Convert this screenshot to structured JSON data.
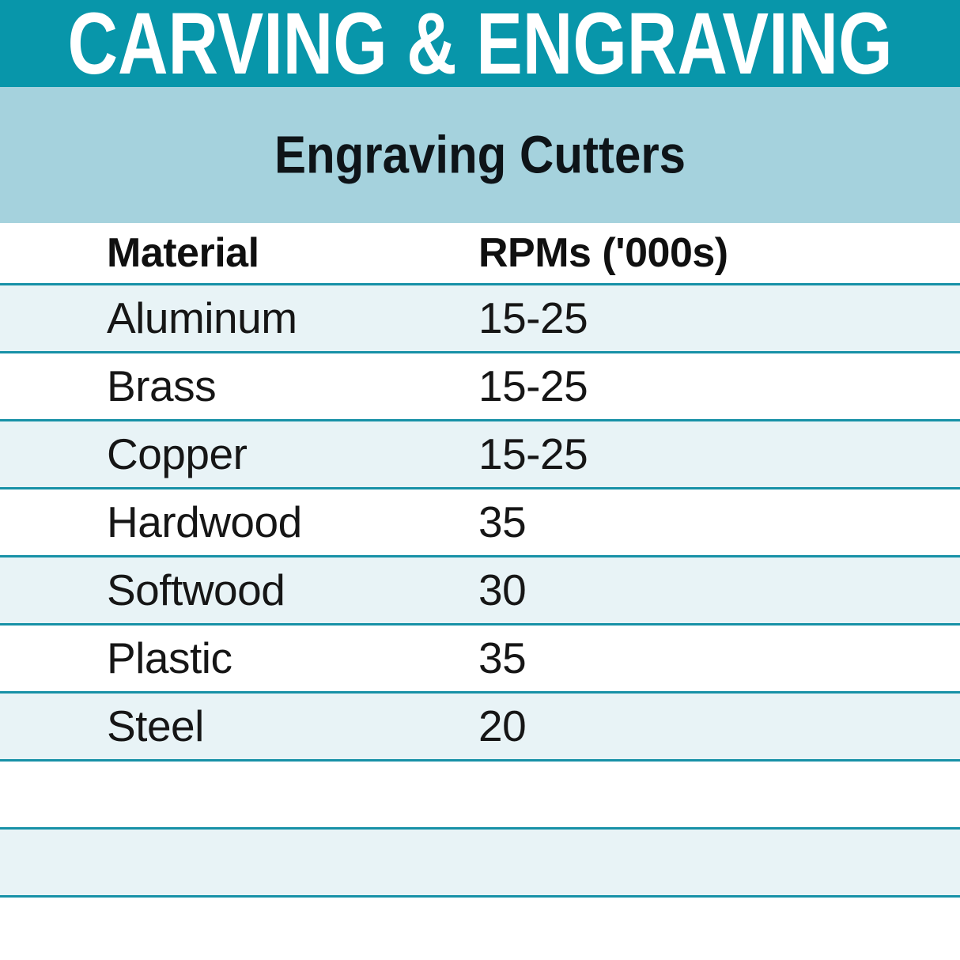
{
  "header": {
    "title": "CARVING & ENGRAVING",
    "subtitle": "Engraving Cutters"
  },
  "table": {
    "columns": [
      "Material",
      "RPMs ('000s)"
    ],
    "rows": [
      {
        "material": "Aluminum",
        "rpms": "15-25"
      },
      {
        "material": "Brass",
        "rpms": "15-25"
      },
      {
        "material": "Copper",
        "rpms": "15-25"
      },
      {
        "material": "Hardwood",
        "rpms": "35"
      },
      {
        "material": "Softwood",
        "rpms": "30"
      },
      {
        "material": "Plastic",
        "rpms": "35"
      },
      {
        "material": "Steel",
        "rpms": "20"
      }
    ],
    "empty_row_count": 3
  },
  "colors": {
    "banner_teal": "#0896aa",
    "subband_light_blue": "#a5d2dd",
    "row_ice_blue": "#e8f3f6",
    "rule_teal": "#1791a7",
    "title_text": "#ffffff",
    "body_text": "#161616"
  },
  "chart_data": {
    "type": "table",
    "title": "Engraving Cutters",
    "section": "CARVING & ENGRAVING",
    "columns": [
      "Material",
      "RPMs ('000s)"
    ],
    "rows": [
      [
        "Aluminum",
        "15-25"
      ],
      [
        "Brass",
        "15-25"
      ],
      [
        "Copper",
        "15-25"
      ],
      [
        "Hardwood",
        "35"
      ],
      [
        "Softwood",
        "30"
      ],
      [
        "Plastic",
        "35"
      ],
      [
        "Steel",
        "20"
      ]
    ]
  }
}
